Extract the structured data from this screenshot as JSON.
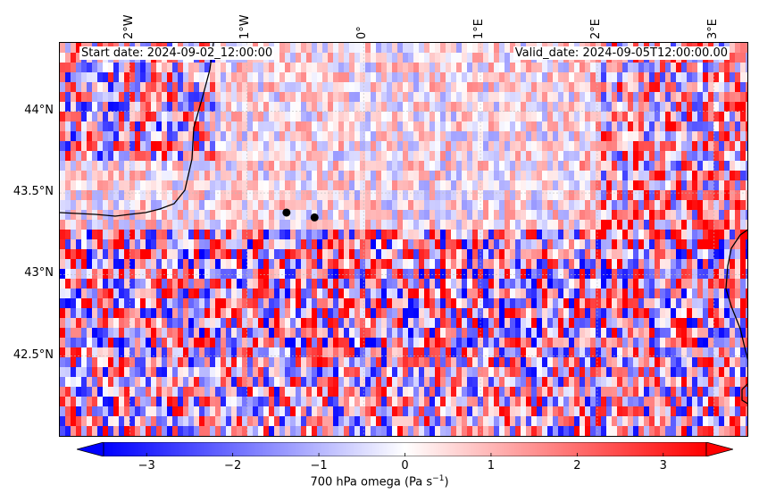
{
  "map": {
    "start_date_label": "Start date: 2024-09-02_12:00:00",
    "valid_date_label": "Valid_date: 2024-09-05T12:00:00.00",
    "lon_ticks": [
      "2°W",
      "1°W",
      "0°",
      "1°E",
      "2°E",
      "3°E"
    ],
    "lat_ticks": [
      "44°N",
      "43.5°N",
      "43°N",
      "42.5°N"
    ],
    "lon_values": [
      -2,
      -1,
      0,
      1,
      2,
      3
    ],
    "lat_values": [
      44.0,
      43.5,
      43.0,
      42.5
    ],
    "lon_range": [
      -2.6,
      3.3
    ],
    "lat_range": [
      42.0,
      44.42
    ],
    "markers": [
      {
        "lon": -0.66,
        "lat": 43.38
      },
      {
        "lon": -0.42,
        "lat": 43.35
      }
    ],
    "field_variable": "omega",
    "field_level": "700 hPa",
    "colors": {
      "min": "#0000ff",
      "mid": "#ffffff",
      "max": "#ff0000",
      "coastline": "#000000",
      "marker": "#000000"
    }
  },
  "colorbar": {
    "label_text": "700 hPa omega (Pa s",
    "label_exp": "−1",
    "label_close": ")",
    "ticks": [
      "−3",
      "−2",
      "−1",
      "0",
      "1",
      "2",
      "3"
    ],
    "tick_values": [
      -3,
      -2,
      -1,
      0,
      1,
      2,
      3
    ],
    "range": [
      -3.5,
      3.5
    ],
    "extend": "both"
  }
}
